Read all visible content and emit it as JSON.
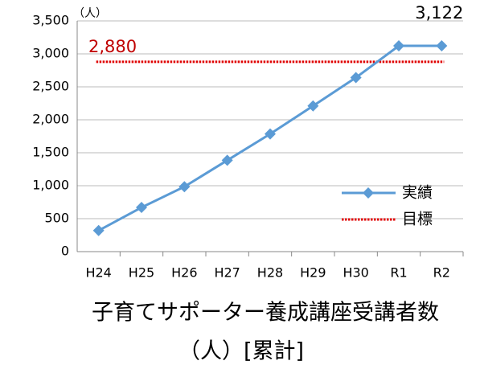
{
  "chart_data": {
    "type": "line",
    "title": "子育てサポーター養成講座受講者数",
    "subtitle": "（人）[累計]",
    "y_unit": "（人）",
    "categories": [
      "H24",
      "H25",
      "H26",
      "H27",
      "H28",
      "H29",
      "H30",
      "R1",
      "R2"
    ],
    "series": [
      {
        "name": "実績",
        "color": "#5b9bd5",
        "values": [
          320,
          670,
          985,
          1385,
          1785,
          2210,
          2640,
          3122,
          3122
        ],
        "value_labels": [
          null,
          null,
          null,
          null,
          null,
          null,
          null,
          null,
          "3,122"
        ]
      }
    ],
    "target": {
      "name": "目標",
      "value": 2880,
      "label": "2,880",
      "color": "#e00000"
    },
    "ylim": [
      0,
      3500
    ],
    "yticks": [
      0,
      500,
      {
        "value": 1000,
        "label": "1,000"
      },
      {
        "value": 1500,
        "label": "1,500"
      },
      {
        "value": 2000,
        "label": "2,000"
      },
      {
        "value": 2500,
        "label": "2,500"
      },
      {
        "value": 3000,
        "label": "3,000"
      },
      {
        "value": 3500,
        "label": "3,500"
      }
    ],
    "grid": true,
    "legend": "right"
  }
}
